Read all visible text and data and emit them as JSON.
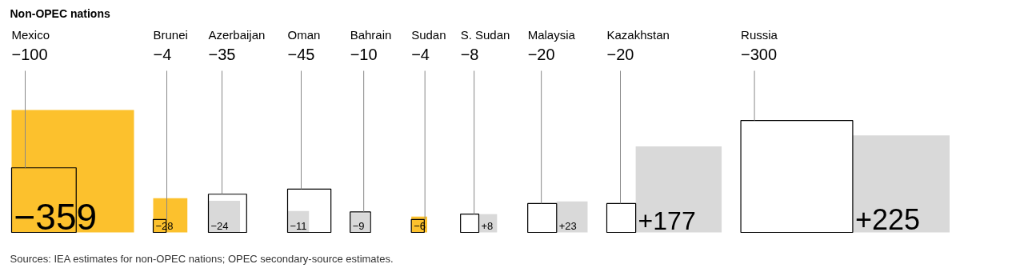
{
  "chart_data": {
    "type": "other",
    "title": "Non-OPEC nations",
    "categories": [
      "Mexico",
      "Brunei",
      "Azerbaijan",
      "Oman",
      "Bahrain",
      "Sudan",
      "S. Sudan",
      "Malaysia",
      "Kazakhstan",
      "Russia"
    ],
    "series": [
      {
        "color": "#000000",
        "values": [
          -100,
          -4,
          -35,
          -45,
          -10,
          -4,
          -8,
          -20,
          -20,
          -300
        ],
        "value_labels": [
          "−100",
          "−4",
          "−35",
          "−45",
          "−10",
          "−4",
          "−8",
          "−20",
          "−20",
          "−300"
        ]
      },
      {
        "colors": [
          "#fcc12d",
          "#fcc12d",
          "#d9d9d9",
          "#d9d9d9",
          "#d9d9d9",
          "#fcc12d",
          "#d9d9d9",
          "#d9d9d9",
          "#d9d9d9",
          "#d9d9d9"
        ],
        "values": [
          -359,
          -28,
          -24,
          -11,
          -9,
          -6,
          8,
          23,
          177,
          225
        ],
        "value_labels": [
          "−359",
          "−28",
          "−24",
          "−11",
          "−9",
          "−6",
          "+8",
          "+23",
          "+177",
          "+225"
        ]
      }
    ],
    "annotations": [
      "Sources: IEA estimates for non-OPEC nations; OPEC secondary-source estimates."
    ]
  }
}
